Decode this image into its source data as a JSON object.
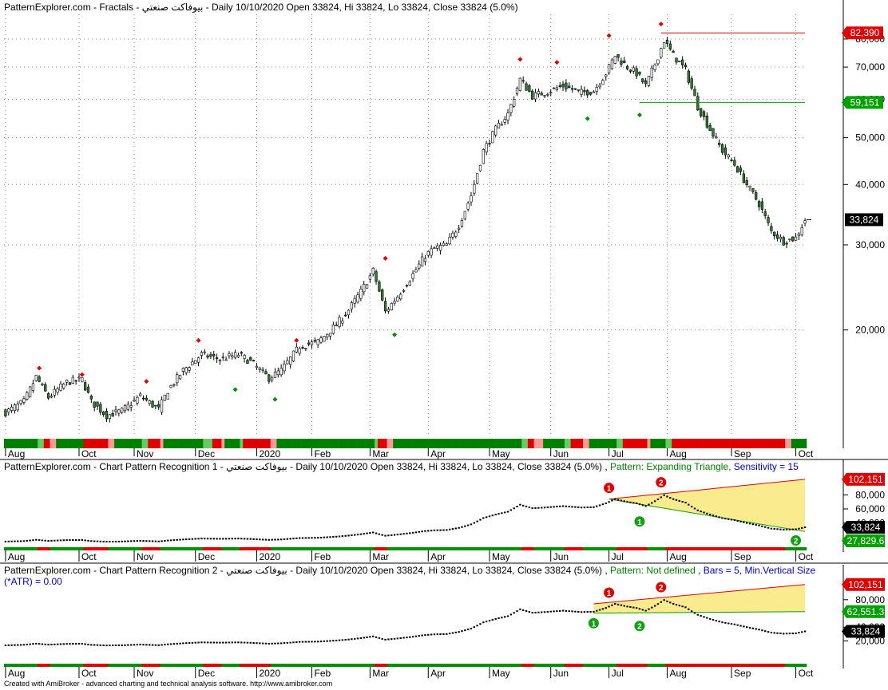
{
  "window": {
    "pane1_title": "PatternExplorer.com - Fractals - بيوفاكت صنعتي - Daily 10/10/2020 Open 33824, Hi 33824, Lo 33824, Close 33824 (5.0%)",
    "pane2_title_main": "PatternExplorer.com - Chart Pattern Recognition 1 - بيوفاكت صنعتي - Daily 10/10/2020 Open 33824, Hi 33824, Lo 33824, Close 33824 (5.0%) ,",
    "pane2_title_pattern": " Pattern: Expanding Triangle,",
    "pane2_title_sens": " Sensitivity = 15",
    "pane3_title_main": "PatternExplorer.com - Chart Pattern Recognition 2 - بيوفاكت صنعتي - Daily 10/10/2020 Open 33824, Hi 33824, Lo 33824, Close 33824 (5.0%) ,",
    "pane3_title_pattern": " Pattern: Not defined",
    "pane3_title_bars": " , Bars = 5, Min.Vertical Size",
    "pane3_title_atr": "(*ATR) = 0.00",
    "footer": "Created with AmiBroker - advanced charting and technical analysis software. http://www.amibroker.com"
  },
  "chart_data": [
    {
      "type": "candlestick",
      "title": "Fractals",
      "y_scale": "log",
      "ylim": [
        12000,
        90000
      ],
      "yticks": [
        "80,000",
        "70,000",
        "60,000",
        "50,000",
        "40,000",
        "30,000",
        "20,000"
      ],
      "ytick_values": [
        80000,
        70000,
        60000,
        50000,
        40000,
        30000,
        20000
      ],
      "x_labels": [
        "Aug",
        "Oct",
        "Nov",
        "Dec",
        "2020",
        "Feb",
        "Mar",
        "Apr",
        "May",
        "Jun",
        "Jul",
        "Aug",
        "Sep",
        "Oct"
      ],
      "x_label_index": [
        0,
        24,
        42,
        62,
        82,
        100,
        119,
        138,
        158,
        178,
        197,
        216,
        237,
        258
      ],
      "bar_count": 262,
      "anchors": [
        [
          0,
          13500
        ],
        [
          6,
          14200
        ],
        [
          10,
          16000
        ],
        [
          14,
          14500
        ],
        [
          20,
          15600
        ],
        [
          25,
          15800
        ],
        [
          28,
          14200
        ],
        [
          33,
          13300
        ],
        [
          38,
          13600
        ],
        [
          44,
          14600
        ],
        [
          50,
          13700
        ],
        [
          53,
          15000
        ],
        [
          58,
          16500
        ],
        [
          64,
          17800
        ],
        [
          70,
          17400
        ],
        [
          76,
          17800
        ],
        [
          80,
          17200
        ],
        [
          84,
          16300
        ],
        [
          86,
          15900
        ],
        [
          90,
          16500
        ],
        [
          96,
          18500
        ],
        [
          102,
          18900
        ],
        [
          108,
          20500
        ],
        [
          112,
          22000
        ],
        [
          116,
          24000
        ],
        [
          120,
          26500
        ],
        [
          124,
          21800
        ],
        [
          128,
          23500
        ],
        [
          132,
          25500
        ],
        [
          137,
          28500
        ],
        [
          140,
          29500
        ],
        [
          144,
          30000
        ],
        [
          148,
          33000
        ],
        [
          152,
          38000
        ],
        [
          156,
          47000
        ],
        [
          160,
          52000
        ],
        [
          164,
          56000
        ],
        [
          168,
          66000
        ],
        [
          172,
          61000
        ],
        [
          176,
          62000
        ],
        [
          182,
          64000
        ],
        [
          188,
          62000
        ],
        [
          192,
          62500
        ],
        [
          196,
          68000
        ],
        [
          199,
          74000
        ],
        [
          203,
          70000
        ],
        [
          206,
          68000
        ],
        [
          209,
          64000
        ],
        [
          212,
          71000
        ],
        [
          215,
          79500
        ],
        [
          218,
          74000
        ],
        [
          222,
          69000
        ],
        [
          226,
          58000
        ],
        [
          230,
          52000
        ],
        [
          234,
          47000
        ],
        [
          238,
          44000
        ],
        [
          242,
          40000
        ],
        [
          246,
          36500
        ],
        [
          250,
          32000
        ],
        [
          254,
          30500
        ],
        [
          258,
          31000
        ],
        [
          261,
          33824
        ]
      ],
      "fractal_up": [
        [
          11,
          16300
        ],
        [
          25,
          15800
        ],
        [
          46,
          15300
        ],
        [
          63,
          18600
        ],
        [
          95,
          18600
        ],
        [
          124,
          27500
        ],
        [
          168,
          71000
        ],
        [
          180,
          70000
        ],
        [
          197,
          79500
        ],
        [
          214,
          84000
        ]
      ],
      "fractal_down": [
        [
          75,
          15400
        ],
        [
          88,
          14700
        ],
        [
          127,
          20000
        ],
        [
          190,
          56000
        ],
        [
          207,
          57000
        ]
      ],
      "levels": [
        {
          "label": "82,390",
          "value": 82390,
          "color": "#e00000",
          "from_index": 214
        },
        {
          "label": "59,151",
          "value": 59151,
          "color": "#00a000",
          "from_index": 207
        }
      ],
      "last_value_label": "33,824",
      "bottom_strip_colors": [
        "#008000",
        "#66cc66",
        "#ff9999",
        "#e00000"
      ]
    },
    {
      "type": "line",
      "title": "Chart Pattern Recognition 1",
      "yticks": [
        "100,000",
        "80,000",
        "60,000",
        "40,000"
      ],
      "ytick_values": [
        100000,
        80000,
        60000,
        40000
      ],
      "ylim": [
        10000,
        110000
      ],
      "pattern": "Expanding Triangle",
      "sensitivity": 15,
      "pivot_labels": [
        "1",
        "2",
        "1",
        "2"
      ],
      "pivots": [
        {
          "label": "1",
          "kind": "top",
          "index": 197,
          "value": 74000
        },
        {
          "label": "2",
          "kind": "top",
          "index": 214,
          "value": 82000
        },
        {
          "label": "1",
          "kind": "bottom",
          "index": 207,
          "value": 58000
        },
        {
          "label": "2",
          "kind": "bottom",
          "index": 258,
          "value": 31000
        }
      ],
      "upper_line": [
        [
          197,
          74000
        ],
        [
          261,
          102151
        ]
      ],
      "lower_line": [
        [
          197,
          74000
        ],
        [
          261,
          27829.6
        ]
      ],
      "value_labels": [
        {
          "text": "102,151",
          "value": 102151,
          "bg": "#e00000"
        },
        {
          "text": "33,824",
          "value": 33824,
          "bg": "#000000"
        },
        {
          "text": "27,829.6",
          "value": 27829.6,
          "bg": "#00a000"
        }
      ]
    },
    {
      "type": "line",
      "title": "Chart Pattern Recognition 2",
      "yticks": [
        "100,000",
        "80,000",
        "60,000",
        "40,000",
        "20,000"
      ],
      "ytick_values": [
        100000,
        80000,
        60000,
        40000,
        20000
      ],
      "ylim": [
        10000,
        110000
      ],
      "pattern": "Not defined",
      "bars": 5,
      "pivot_labels": [
        "1",
        "2",
        "1",
        "2"
      ],
      "pivots": [
        {
          "label": "1",
          "kind": "top",
          "index": 197,
          "value": 74000
        },
        {
          "label": "2",
          "kind": "top",
          "index": 214,
          "value": 82000
        },
        {
          "label": "1",
          "kind": "bottom",
          "index": 192,
          "value": 62000
        },
        {
          "label": "2",
          "kind": "bottom",
          "index": 207,
          "value": 58000
        }
      ],
      "upper_line": [
        [
          192,
          74000
        ],
        [
          261,
          102151
        ]
      ],
      "lower_line": [
        [
          192,
          60500
        ],
        [
          261,
          62551.3
        ]
      ],
      "value_labels": [
        {
          "text": "102,151",
          "value": 102151,
          "bg": "#e00000"
        },
        {
          "text": "62,551.3",
          "value": 62551.3,
          "bg": "#00a000"
        },
        {
          "text": "33,824",
          "value": 33824,
          "bg": "#000000"
        }
      ]
    }
  ]
}
